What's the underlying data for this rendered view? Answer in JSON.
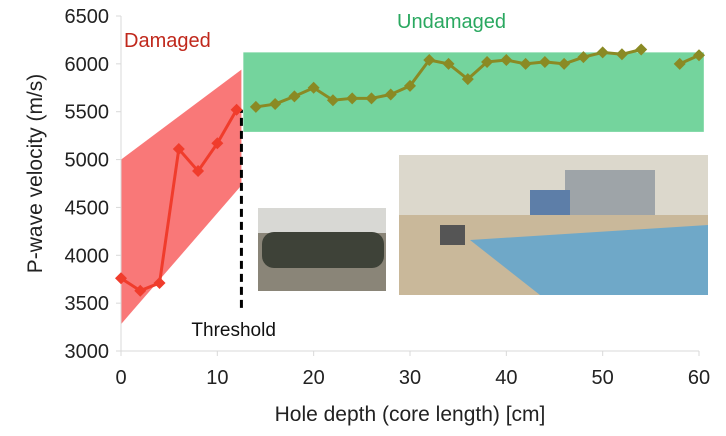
{
  "chart_data": {
    "type": "line",
    "x_label": "Hole depth (core length) [cm]",
    "y_label": "P-wave velocity (m/s)",
    "xlim": [
      0,
      60
    ],
    "ylim": [
      3000,
      6500
    ],
    "xticks": [
      0,
      10,
      20,
      30,
      40,
      50,
      60
    ],
    "yticks": [
      3000,
      3500,
      4000,
      4500,
      5000,
      5500,
      6000,
      6500
    ],
    "series": [
      {
        "name": "Damaged",
        "color": "#f03c2c",
        "x": [
          0,
          2,
          4,
          6,
          8,
          10,
          12
        ],
        "values": [
          3760,
          3630,
          3710,
          5110,
          4880,
          5170,
          5520
        ]
      },
      {
        "name": "Undamaged",
        "color": "#8a8a24",
        "x": [
          14,
          16,
          18,
          20,
          22,
          24,
          26,
          28,
          30,
          32,
          34,
          36,
          38,
          40,
          42,
          44,
          46,
          48,
          50,
          52,
          54,
          56,
          58,
          60
        ],
        "values": [
          5550,
          5580,
          5660,
          5750,
          5620,
          5640,
          5640,
          5680,
          5770,
          6040,
          6000,
          5840,
          6020,
          6040,
          6000,
          6020,
          6000,
          6070,
          6120,
          6100,
          6150,
          null,
          6000,
          6090
        ]
      }
    ],
    "bands": [
      {
        "color": "#f86060",
        "x": [
          0,
          12.5
        ],
        "low": [
          3280,
          4730
        ],
        "high": [
          5000,
          5940
        ]
      },
      {
        "color": "#5ccc8c",
        "x": [
          12.7,
          60.5
        ],
        "low": [
          5290,
          5290
        ],
        "high": [
          6120,
          6120
        ]
      }
    ],
    "threshold": {
      "label": "Threshold",
      "x": 12.5,
      "from": 3450,
      "to": 5520
    }
  }
}
